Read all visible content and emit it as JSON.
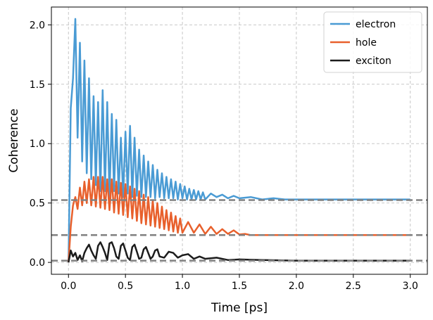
{
  "chart_data": {
    "type": "line",
    "xlabel": "Time [ps]",
    "ylabel": "Coherence",
    "xlim": [
      -0.15,
      3.15
    ],
    "ylim": [
      -0.1,
      2.15
    ],
    "x_ticks": [
      0.0,
      0.5,
      1.0,
      1.5,
      2.0,
      2.5,
      3.0
    ],
    "y_ticks": [
      0.0,
      0.5,
      1.0,
      1.5,
      2.0
    ],
    "x_tick_labels": [
      "0.0",
      "0.5",
      "1.0",
      "1.5",
      "2.0",
      "2.5",
      "3.0"
    ],
    "y_tick_labels": [
      "0.0",
      "0.5",
      "1.0",
      "1.5",
      "2.0"
    ],
    "grid": true,
    "legend_position": "top-right",
    "series": [
      {
        "name": "electron",
        "color": "#4a9bd4",
        "x": [
          0.0,
          0.02,
          0.04,
          0.06,
          0.08,
          0.1,
          0.12,
          0.14,
          0.16,
          0.18,
          0.2,
          0.22,
          0.24,
          0.26,
          0.28,
          0.3,
          0.32,
          0.34,
          0.36,
          0.38,
          0.4,
          0.42,
          0.44,
          0.46,
          0.48,
          0.5,
          0.52,
          0.54,
          0.56,
          0.58,
          0.6,
          0.62,
          0.64,
          0.66,
          0.68,
          0.7,
          0.72,
          0.74,
          0.76,
          0.78,
          0.8,
          0.82,
          0.84,
          0.86,
          0.88,
          0.9,
          0.92,
          0.94,
          0.96,
          0.98,
          1.0,
          1.02,
          1.04,
          1.06,
          1.08,
          1.1,
          1.12,
          1.14,
          1.16,
          1.18,
          1.2,
          1.25,
          1.3,
          1.35,
          1.4,
          1.45,
          1.5,
          1.6,
          1.7,
          1.8,
          1.9,
          2.0,
          2.2,
          2.4,
          2.6,
          2.8,
          3.0
        ],
        "values": [
          0.0,
          1.3,
          1.55,
          2.05,
          1.05,
          1.85,
          0.85,
          1.7,
          0.75,
          1.55,
          0.7,
          1.4,
          0.65,
          1.35,
          0.6,
          1.45,
          0.6,
          1.35,
          0.55,
          1.25,
          0.6,
          1.2,
          0.58,
          1.05,
          0.55,
          1.1,
          0.58,
          1.15,
          0.55,
          1.05,
          0.56,
          0.95,
          0.55,
          0.9,
          0.55,
          0.85,
          0.55,
          0.82,
          0.54,
          0.78,
          0.55,
          0.75,
          0.54,
          0.72,
          0.54,
          0.7,
          0.54,
          0.68,
          0.53,
          0.66,
          0.54,
          0.64,
          0.53,
          0.62,
          0.53,
          0.61,
          0.53,
          0.6,
          0.53,
          0.59,
          0.53,
          0.58,
          0.55,
          0.57,
          0.54,
          0.56,
          0.54,
          0.55,
          0.53,
          0.54,
          0.53,
          0.53,
          0.53,
          0.53,
          0.53,
          0.53,
          0.53
        ]
      },
      {
        "name": "hole",
        "color": "#e8602c",
        "x": [
          0.0,
          0.02,
          0.04,
          0.06,
          0.08,
          0.1,
          0.12,
          0.14,
          0.16,
          0.18,
          0.2,
          0.22,
          0.24,
          0.26,
          0.28,
          0.3,
          0.32,
          0.34,
          0.36,
          0.38,
          0.4,
          0.42,
          0.44,
          0.46,
          0.48,
          0.5,
          0.52,
          0.54,
          0.56,
          0.58,
          0.6,
          0.62,
          0.64,
          0.66,
          0.68,
          0.7,
          0.72,
          0.74,
          0.76,
          0.78,
          0.8,
          0.82,
          0.84,
          0.86,
          0.88,
          0.9,
          0.92,
          0.94,
          0.96,
          0.98,
          1.0,
          1.05,
          1.1,
          1.15,
          1.2,
          1.25,
          1.3,
          1.35,
          1.4,
          1.45,
          1.5,
          1.55,
          1.6,
          1.7,
          1.8,
          2.0,
          2.2,
          2.5,
          2.8,
          3.0
        ],
        "values": [
          0.0,
          0.3,
          0.48,
          0.55,
          0.45,
          0.63,
          0.48,
          0.68,
          0.5,
          0.7,
          0.48,
          0.72,
          0.47,
          0.72,
          0.46,
          0.72,
          0.45,
          0.7,
          0.44,
          0.7,
          0.42,
          0.68,
          0.41,
          0.67,
          0.4,
          0.66,
          0.38,
          0.64,
          0.37,
          0.62,
          0.35,
          0.6,
          0.33,
          0.57,
          0.32,
          0.55,
          0.31,
          0.52,
          0.3,
          0.5,
          0.29,
          0.47,
          0.28,
          0.44,
          0.27,
          0.42,
          0.26,
          0.39,
          0.25,
          0.37,
          0.25,
          0.34,
          0.25,
          0.32,
          0.24,
          0.3,
          0.24,
          0.28,
          0.24,
          0.27,
          0.235,
          0.24,
          0.23,
          0.23,
          0.23,
          0.23,
          0.23,
          0.23,
          0.23,
          0.23
        ]
      },
      {
        "name": "exciton",
        "color": "#1c1c1c",
        "x": [
          0.0,
          0.02,
          0.04,
          0.06,
          0.08,
          0.1,
          0.12,
          0.14,
          0.16,
          0.18,
          0.2,
          0.22,
          0.24,
          0.26,
          0.28,
          0.3,
          0.32,
          0.34,
          0.36,
          0.38,
          0.4,
          0.42,
          0.44,
          0.46,
          0.48,
          0.5,
          0.52,
          0.54,
          0.56,
          0.58,
          0.6,
          0.62,
          0.64,
          0.66,
          0.68,
          0.7,
          0.72,
          0.74,
          0.76,
          0.78,
          0.8,
          0.84,
          0.88,
          0.92,
          0.96,
          1.0,
          1.05,
          1.1,
          1.15,
          1.2,
          1.3,
          1.4,
          1.5,
          1.7,
          2.0,
          2.5,
          3.0
        ],
        "values": [
          0.0,
          0.1,
          0.05,
          0.08,
          0.02,
          0.06,
          0.01,
          0.08,
          0.12,
          0.15,
          0.1,
          0.06,
          0.03,
          0.14,
          0.17,
          0.13,
          0.08,
          0.02,
          0.16,
          0.17,
          0.12,
          0.05,
          0.03,
          0.14,
          0.16,
          0.1,
          0.04,
          0.02,
          0.13,
          0.15,
          0.09,
          0.03,
          0.04,
          0.11,
          0.13,
          0.08,
          0.03,
          0.05,
          0.1,
          0.11,
          0.05,
          0.04,
          0.09,
          0.08,
          0.04,
          0.06,
          0.07,
          0.03,
          0.05,
          0.03,
          0.04,
          0.02,
          0.025,
          0.02,
          0.015,
          0.015,
          0.015
        ]
      }
    ],
    "reference_lines": {
      "orientation": "horizontal",
      "style": "dashed",
      "color": "#808080",
      "y": [
        0.525,
        0.23,
        0.015
      ]
    }
  }
}
